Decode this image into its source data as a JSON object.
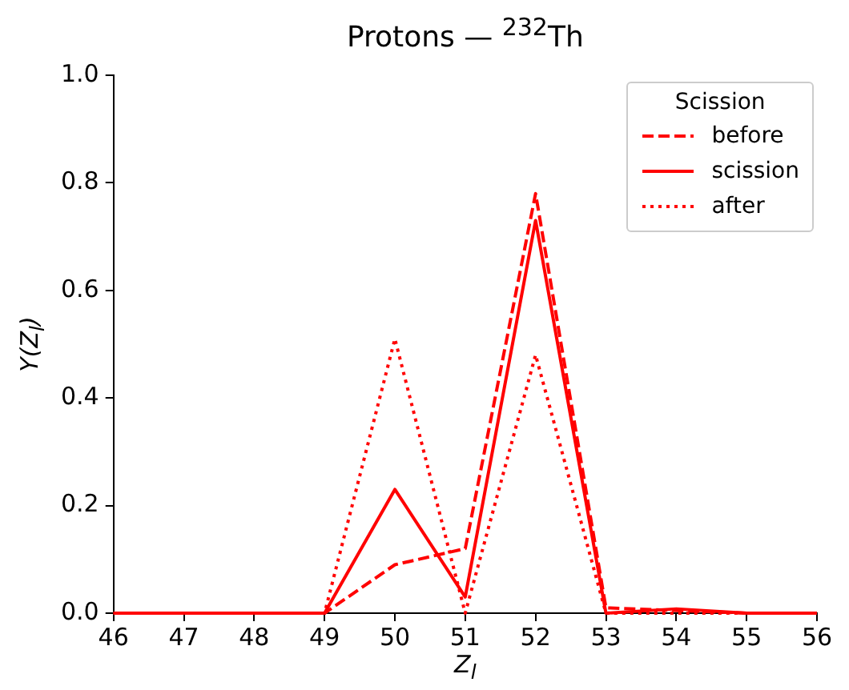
{
  "chart_data": {
    "type": "line",
    "title": "Protons — $^{232}$Th",
    "xlabel": "Z$_{l}$",
    "ylabel": "Y(Z$_{l}$)",
    "legend_title": "Scission",
    "x": [
      46,
      47,
      48,
      49,
      50,
      51,
      52,
      53,
      54,
      55,
      56
    ],
    "series": [
      {
        "name": "before",
        "color": "#ff0000",
        "line_style": "dashed",
        "values": [
          0,
          0,
          0,
          0,
          0.09,
          0.12,
          0.78,
          0.01,
          0.005,
          0,
          0
        ]
      },
      {
        "name": "scission",
        "color": "#ff0000",
        "line_style": "solid",
        "values": [
          0,
          0,
          0,
          0,
          0.23,
          0.03,
          0.73,
          0,
          0.008,
          0,
          0
        ]
      },
      {
        "name": "after",
        "color": "#ff0000",
        "line_style": "dotted",
        "values": [
          0,
          0,
          0,
          0,
          0.51,
          0,
          0.48,
          0,
          0,
          0,
          0
        ]
      }
    ],
    "xlim": [
      46,
      56
    ],
    "xticks": [
      46,
      47,
      48,
      49,
      50,
      51,
      52,
      53,
      54,
      55,
      56
    ],
    "ylim": [
      0,
      1
    ],
    "yticks": [
      {
        "value": 0,
        "label": "0.0"
      },
      {
        "value": 0.2,
        "label": "0.2"
      },
      {
        "value": 0.4,
        "label": "0.4"
      },
      {
        "value": 0.6,
        "label": "0.6"
      },
      {
        "value": 0.8,
        "label": "0.8"
      },
      {
        "value": 1,
        "label": "1.0"
      }
    ],
    "grid": false,
    "legend": "top right",
    "marker": "none"
  }
}
